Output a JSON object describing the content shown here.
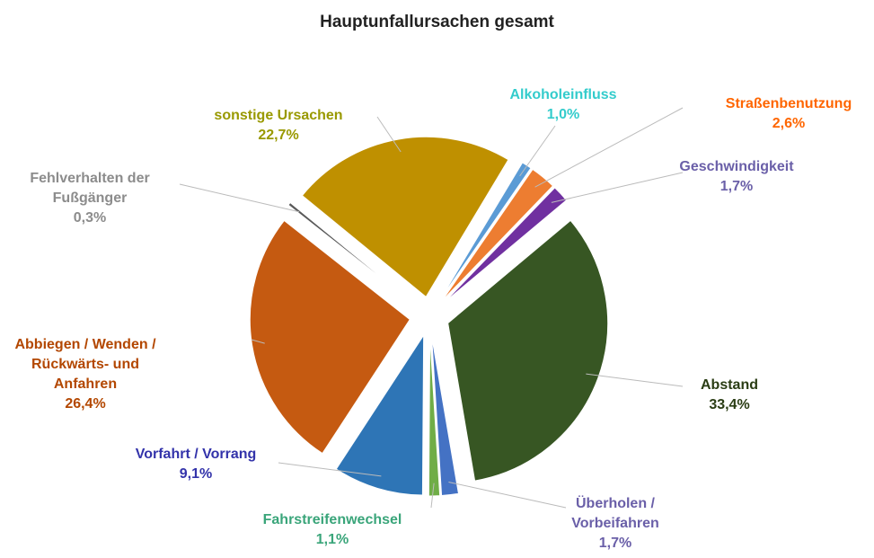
{
  "chart_data": {
    "type": "pie",
    "title": "Hauptunfallursachen gesamt",
    "categories": [
      "Alkoholeinfluss",
      "Straßenbenutzung",
      "Geschwindigkeit",
      "Abstand",
      "Überholen / Vorbeifahren",
      "Fahrstreifenwechsel",
      "Vorfahrt / Vorrang",
      "Abbiegen / Wenden / Rückwärts- und Anfahren",
      "Fehlverhalten der Fußgänger",
      "sonstige Ursachen"
    ],
    "values": [
      1.0,
      2.6,
      1.7,
      33.4,
      1.7,
      1.1,
      9.1,
      26.4,
      0.3,
      22.7
    ],
    "value_labels": [
      "1,0%",
      "2,6%",
      "1,7%",
      "33,4%",
      "1,7%",
      "1,1%",
      "9,1%",
      "26,4%",
      "0,3%",
      "22,7%"
    ],
    "colors": [
      "#5b9bd5",
      "#ed7d31",
      "#7030a0",
      "#375623",
      "#4472c4",
      "#70ad47",
      "#2e75b6",
      "#c55a11",
      "#595959",
      "#bf9000"
    ],
    "label_colors": [
      "#33cccc",
      "#ff6600",
      "#6a5fa8",
      "#2a3d14",
      "#6a5fa8",
      "#3aa57a",
      "#3333aa",
      "#b34700",
      "#8c8c8c",
      "#999900"
    ]
  }
}
